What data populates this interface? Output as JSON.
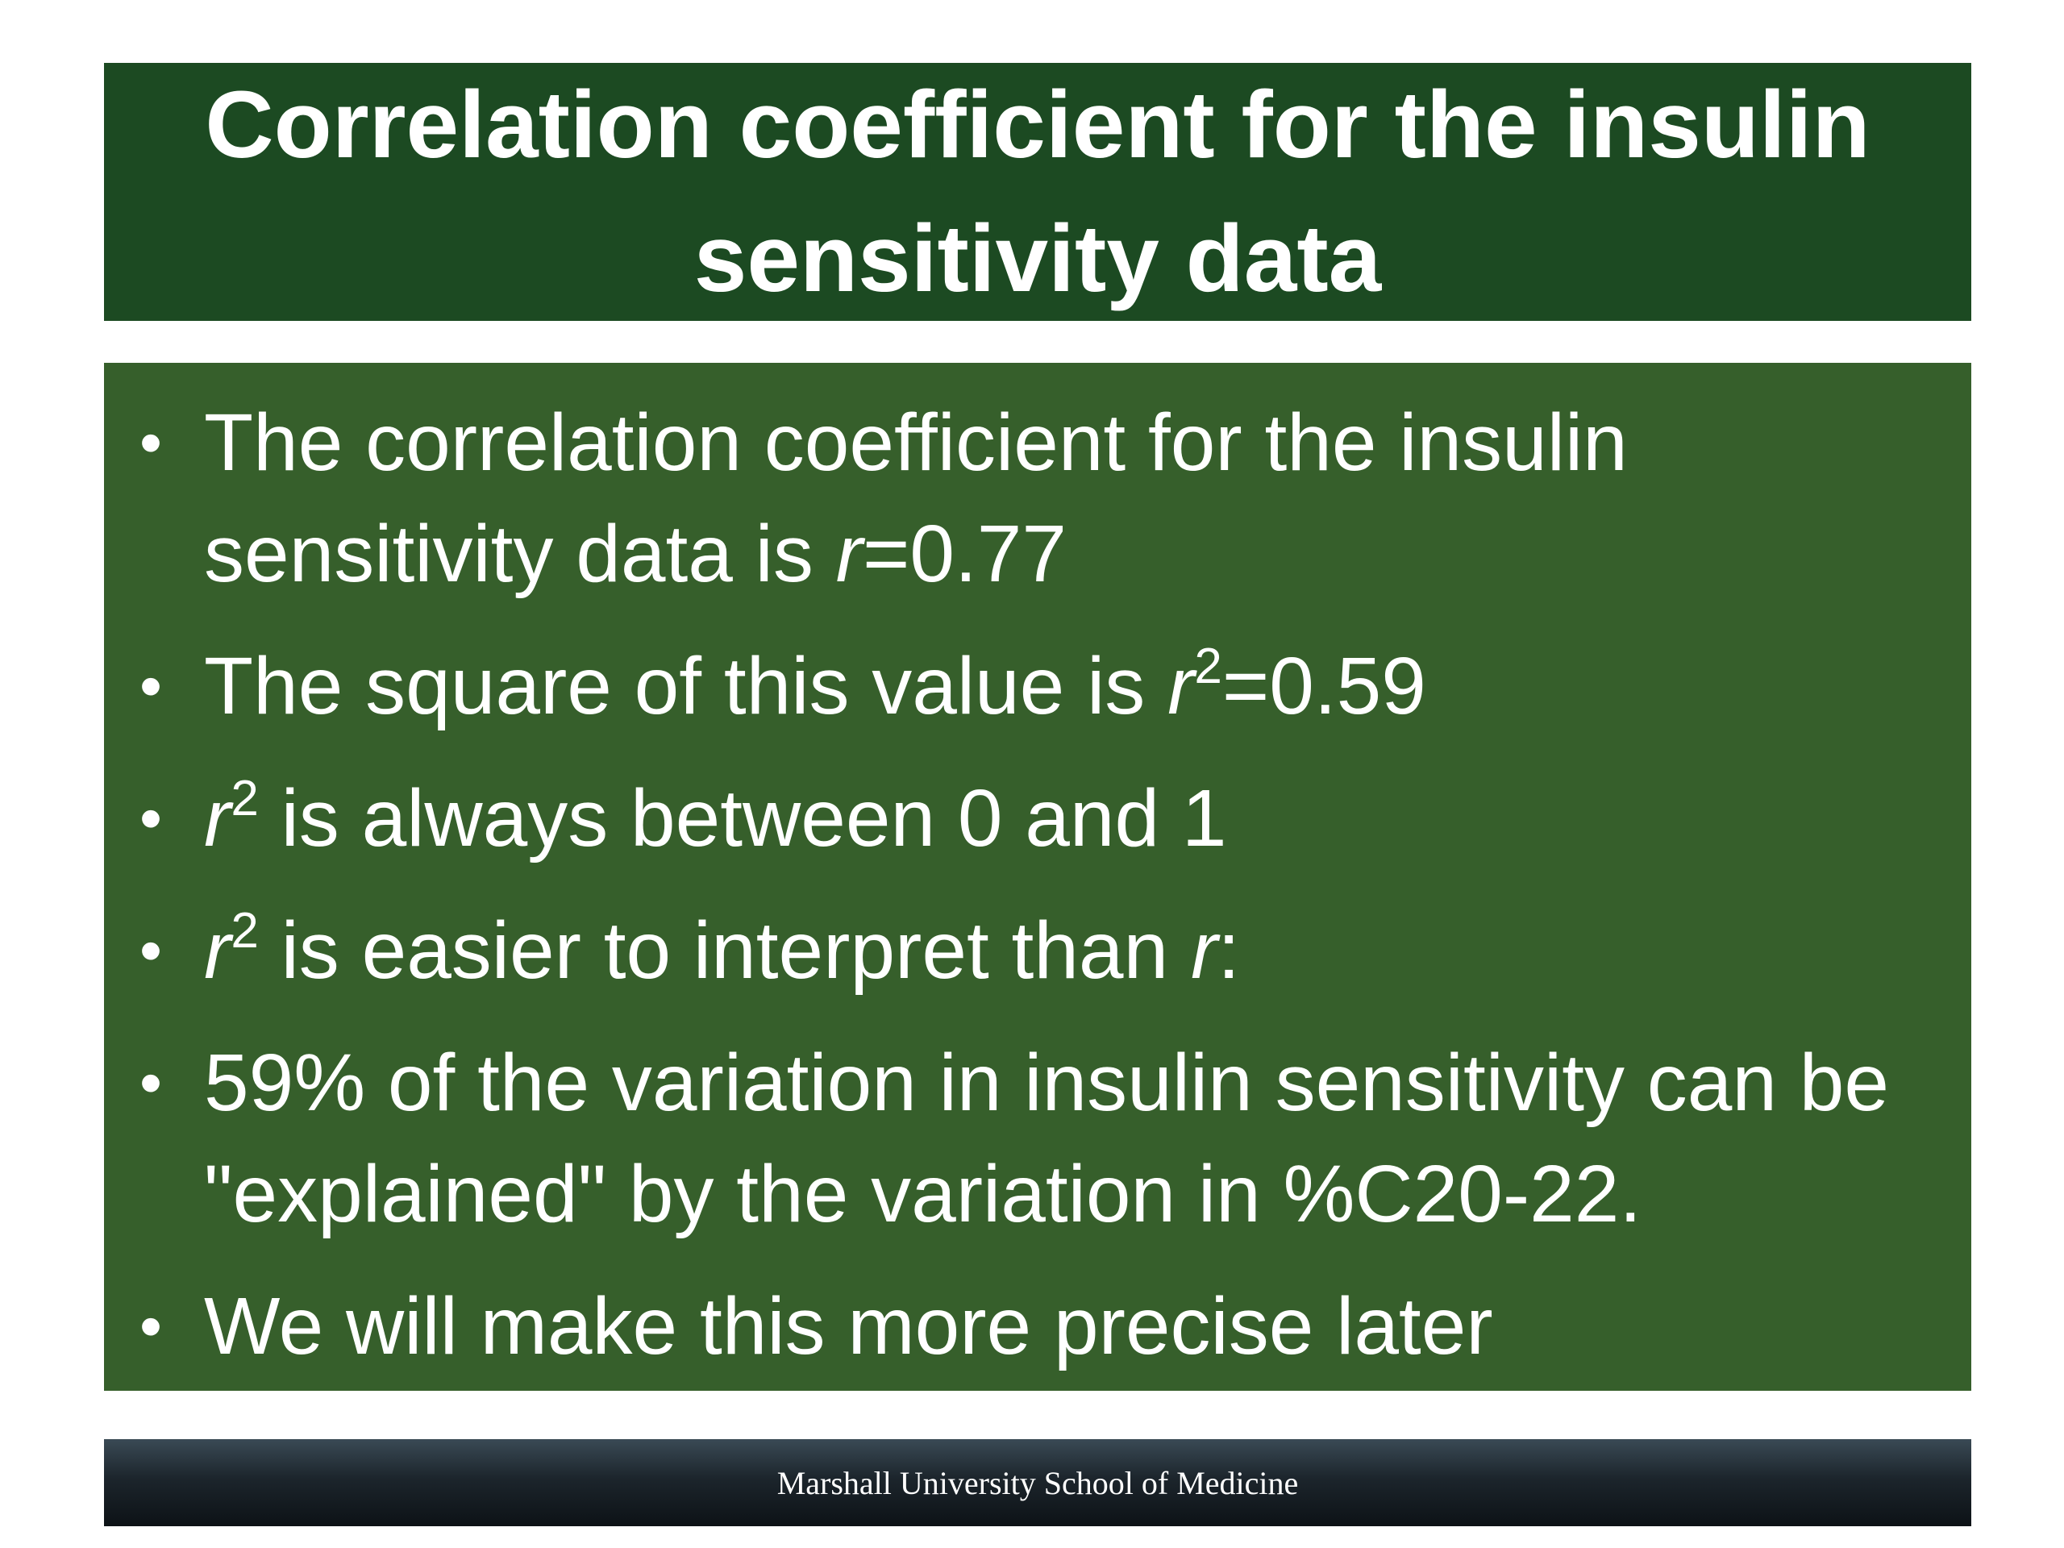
{
  "slide": {
    "title": "Correlation coefficient for the insulin sensitivity data",
    "bullets": [
      {
        "p1": "The correlation coefficient for the insulin sensitivity data is ",
        "var": "r",
        "p2": "=0.77"
      },
      {
        "p1": "The square of this value is ",
        "var": "r",
        "sup": "2",
        "p2": "=0.59"
      },
      {
        "var": "r",
        "sup": "2",
        "p2": " is always between 0 and 1"
      },
      {
        "var": "r",
        "sup": "2",
        "p2": " is easier to interpret than ",
        "var2": "r",
        "p3": ":"
      },
      {
        "text": "59% of the variation in insulin sensitivity can be \"explained\" by the variation in %C20-22."
      },
      {
        "text": "We will make this more precise later"
      }
    ],
    "bullet_symbol": "•",
    "footer": "Marshall University School of Medicine"
  },
  "colors": {
    "title_bg": "#1c4a22",
    "content_bg": "#365f2b",
    "text": "#ffffff"
  }
}
